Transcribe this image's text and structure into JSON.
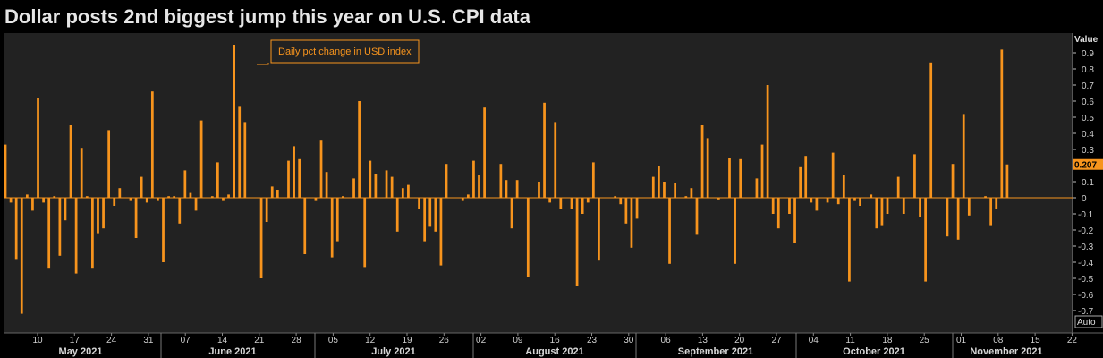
{
  "title": "Dollar posts 2nd biggest jump this year on U.S. CPI data",
  "colors": {
    "background": "#000000",
    "plot_bg": "#222222",
    "bar": "#f7941d",
    "zero_line": "#f7941d",
    "last_value_bg": "#f7941d"
  },
  "chart_data": {
    "type": "bar",
    "title": "Dollar posts 2nd biggest jump this year on U.S. CPI data",
    "legend": "Daily pct change in USD index",
    "ylabel": "Value",
    "ylim": [
      -0.72,
      0.97
    ],
    "yticks": [
      0.9,
      0.8,
      0.7,
      0.6,
      0.5,
      0.4,
      0.3,
      0.2,
      0.1,
      0,
      -0.1,
      -0.2,
      -0.3,
      -0.4,
      -0.5,
      -0.6,
      -0.7
    ],
    "last_value": 0.207,
    "last_value_label": "0.207",
    "auto_label": "Auto",
    "day_ticks": [
      "10",
      "17",
      "24",
      "31",
      "07",
      "14",
      "21",
      "28",
      "05",
      "12",
      "19",
      "26",
      "02",
      "09",
      "16",
      "23",
      "30",
      "06",
      "13",
      "20",
      "27",
      "04",
      "11",
      "18",
      "25",
      "01",
      "08",
      "15",
      "22"
    ],
    "months": [
      "May 2021",
      "June 2021",
      "July 2021",
      "August 2021",
      "September 2021",
      "October 2021",
      "November 2021"
    ],
    "values": [
      0.33,
      -0.03,
      -0.38,
      -0.72,
      0.02,
      -0.08,
      0.62,
      -0.03,
      -0.44,
      0.01,
      -0.36,
      -0.14,
      0.45,
      -0.47,
      0.31,
      0.01,
      -0.44,
      -0.22,
      -0.19,
      0.42,
      -0.05,
      0.06,
      0,
      -0.02,
      -0.25,
      0.13,
      -0.03,
      0.66,
      -0.02,
      -0.4,
      0.01,
      0.01,
      -0.16,
      0.17,
      0.03,
      -0.08,
      0.48,
      0,
      0.01,
      0.22,
      -0.02,
      0.02,
      0.95,
      0.57,
      0.47,
      0,
      0,
      -0.5,
      -0.15,
      0.07,
      0.05,
      0,
      0.23,
      0.32,
      0.24,
      -0.35,
      0,
      -0.02,
      0.36,
      0.16,
      -0.37,
      -0.27,
      0.01,
      0,
      0.12,
      0.6,
      -0.43,
      0.23,
      0.15,
      0,
      0.17,
      0.13,
      -0.21,
      0.06,
      0.08,
      0,
      -0.07,
      -0.27,
      -0.18,
      -0.21,
      -0.42,
      0.21,
      0,
      0,
      -0.02,
      0.02,
      0.23,
      0.14,
      0.56,
      0,
      0,
      0.21,
      0.11,
      -0.19,
      0.11,
      0,
      -0.49,
      0,
      0.1,
      0.59,
      -0.03,
      0.47,
      -0.07,
      0,
      -0.07,
      -0.55,
      -0.1,
      -0.03,
      0.22,
      -0.39,
      0,
      0,
      0.01,
      -0.04,
      -0.16,
      -0.31,
      -0.13,
      0,
      0,
      0.13,
      0.2,
      0.1,
      -0.41,
      0.09,
      0,
      0.01,
      0.06,
      -0.23,
      0.45,
      0.37,
      0,
      -0.01,
      0,
      0.25,
      -0.41,
      0.24,
      0,
      0,
      0.12,
      0.33,
      0.7,
      -0.1,
      -0.19,
      0,
      -0.1,
      -0.28,
      0.19,
      0.26,
      -0.03,
      -0.08,
      0,
      -0.03,
      0.28,
      -0.04,
      0.14,
      -0.52,
      -0.02,
      -0.05,
      0,
      0.02,
      -0.19,
      -0.17,
      -0.1,
      0,
      0.13,
      -0.1,
      0,
      0.27,
      -0.12,
      -0.52,
      0.84,
      0,
      0,
      -0.24,
      0.21,
      -0.26,
      0.52,
      -0.11,
      0,
      0,
      0.01,
      -0.17,
      -0.07,
      0.92,
      0.207,
      0
    ]
  }
}
